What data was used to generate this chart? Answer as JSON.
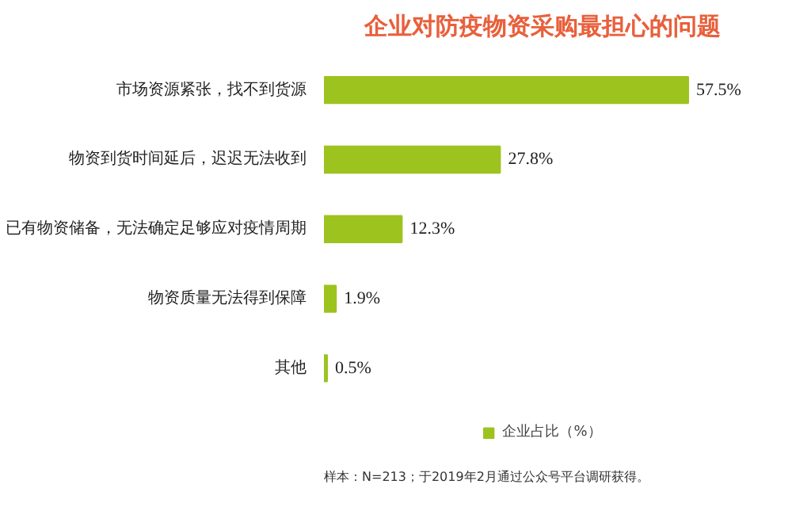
{
  "chart_data": {
    "type": "bar",
    "orientation": "horizontal",
    "title": "企业对防疫物资采购最担心的问题",
    "categories": [
      "市场资源紧张，找不到货源",
      "物资到货时间延后，迟迟无法收到",
      "已有物资储备，无法确定足够应对疫情周期",
      "物资质量无法得到保障",
      "其他"
    ],
    "series": [
      {
        "name": "企业占比（%）",
        "color": "#9dc31f",
        "values": [
          57.5,
          27.8,
          12.3,
          1.9,
          0.5
        ],
        "value_labels": [
          "57.5%",
          "27.8%",
          "12.3%",
          "1.9%",
          "0.5%"
        ]
      }
    ],
    "legend": "bottom",
    "annotations": [
      "样本：N=213；于2019年2月通过公众号平台调研获得。"
    ]
  }
}
